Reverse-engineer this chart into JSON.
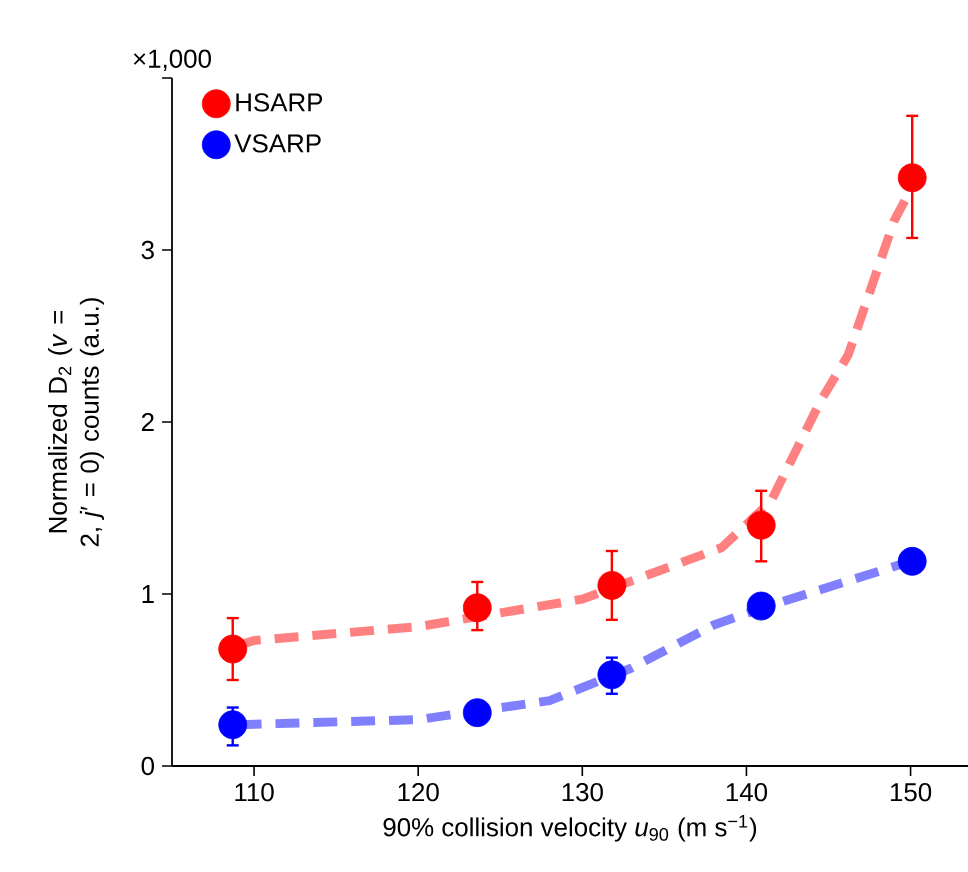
{
  "chart_data": {
    "type": "scatter",
    "xlabel": "90% collision velocity *u*$_{90}$ (m s$^{−1}$)",
    "ylabel": "Normalized D$_{2}$ (*v* = 2, *j*′ = 0) counts (a.u.)",
    "annotations": [
      "×1,000"
    ],
    "xlim": [
      105,
      153.5
    ],
    "ylim": [
      0,
      4
    ],
    "xticks": [
      110,
      120,
      130,
      140,
      150
    ],
    "yticks": [
      0,
      1,
      2,
      3,
      {
        "value": 4,
        "label": null
      }
    ],
    "marker": "circle",
    "legend": "top left",
    "grid": false,
    "series": [
      {
        "name": "HSARP",
        "color": "#ff0000",
        "x": [
          108.7,
          123.6,
          131.8,
          140.9,
          150.1
        ],
        "values": [
          0.68,
          0.92,
          1.05,
          1.4,
          3.42
        ],
        "errors": [
          [
            0.5,
            0.86
          ],
          [
            0.79,
            1.07
          ],
          [
            0.85,
            1.25
          ],
          [
            1.19,
            1.6
          ],
          [
            3.07,
            3.78
          ]
        ]
      },
      {
        "name": "VSARP",
        "color": "#0000ff",
        "x": [
          108.7,
          123.6,
          131.8,
          140.9,
          150.1
        ],
        "values": [
          0.24,
          0.31,
          0.53,
          0.93,
          1.19
        ],
        "errors": [
          [
            0.12,
            0.34
          ],
          null,
          [
            0.42,
            0.63
          ],
          null,
          null
        ]
      },
      {
        "type": "line",
        "line_style": "dashed",
        "marker": "none",
        "color": "#ff8080",
        "x": [
          109,
          110,
          120,
          130,
          138.5,
          141.5,
          144.5,
          146.2,
          149,
          150
        ],
        "values": [
          0.7,
          0.73,
          0.81,
          0.97,
          1.27,
          1.54,
          2.12,
          2.39,
          3.17,
          3.35
        ]
      },
      {
        "type": "line",
        "line_style": "dashed",
        "marker": "none",
        "color": "#8080ff",
        "x": [
          109,
          120,
          128,
          133,
          138,
          141,
          150
        ],
        "values": [
          0.24,
          0.27,
          0.38,
          0.57,
          0.82,
          0.92,
          1.19
        ]
      }
    ]
  }
}
